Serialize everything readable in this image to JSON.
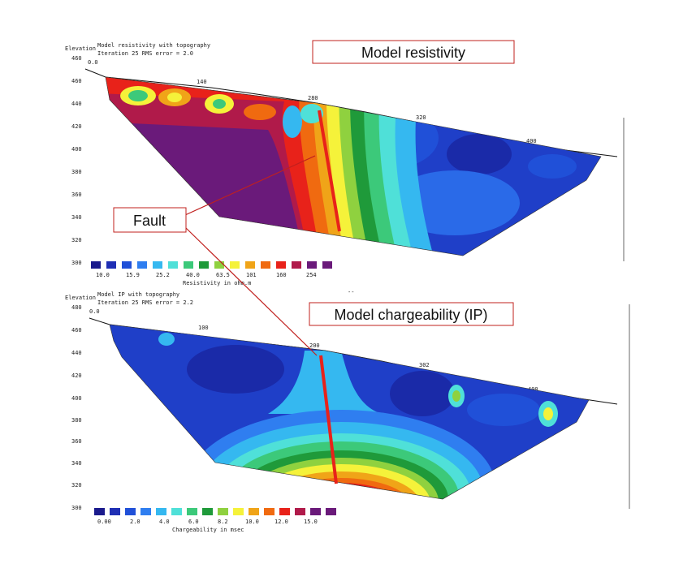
{
  "resistivity": {
    "header_elev": "Elevation",
    "header_title": "Model resistivity with topography",
    "header_iter": "Iteration 25 RMS error = 2.0",
    "start_x": "0.0",
    "x_ticks": [
      "140",
      "280",
      "320",
      "400"
    ],
    "y_ticks": [
      "460",
      "460",
      "440",
      "420",
      "400",
      "380",
      "360",
      "340",
      "320",
      "300"
    ],
    "callout": "Model resistivity",
    "scale_values": [
      "10.0",
      "15.9",
      "25.2",
      "40.0",
      "63.5",
      "101",
      "160",
      "254"
    ],
    "scale_label": "Resistivity in ohm.m",
    "colors": [
      "#1a1a8c",
      "#1f2fb4",
      "#2050d8",
      "#2f7ef0",
      "#35b8f0",
      "#4fe0d8",
      "#3cc97a",
      "#1f9a3a",
      "#8fd13f",
      "#f5f23a",
      "#f0a418",
      "#f06a10",
      "#e8221a",
      "#b01a4a",
      "#6a1a7a"
    ]
  },
  "chargeability": {
    "header_elev": "Elevation",
    "header_title": "Model IP with topography",
    "header_iter": "Iteration 25 RMS error = 2.2",
    "start_x": "0.0",
    "x_ticks": [
      "100",
      "200",
      "302",
      "400"
    ],
    "y_ticks": [
      "480",
      "460",
      "440",
      "420",
      "400",
      "380",
      "360",
      "340",
      "320",
      "300"
    ],
    "callout": "Model chargeability (IP)",
    "scale_values": [
      "0.00",
      "2.0",
      "4.0",
      "6.0",
      "8.2",
      "10.0",
      "12.0",
      "15.0"
    ],
    "scale_label": "Chargeability in msec"
  },
  "fault_callout": "Fault"
}
